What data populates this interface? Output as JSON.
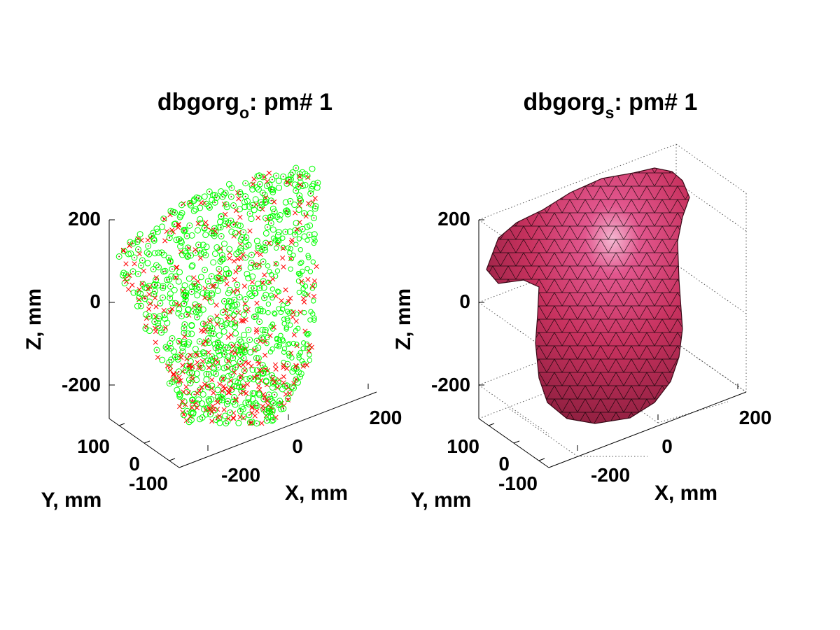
{
  "chart_data": [
    {
      "type": "scatter",
      "title": {
        "main": "dbgorg",
        "subscript": "o",
        "suffix": ": pm# 1"
      },
      "xlabel": "X, mm",
      "ylabel": "Y, mm",
      "zlabel": "Z, mm",
      "x_ticks": [
        "-200",
        "0",
        "200"
      ],
      "y_ticks": [
        "-100",
        "0",
        "100"
      ],
      "z_ticks": [
        "-200",
        "0",
        "200"
      ],
      "xlim": [
        -300,
        300
      ],
      "ylim": [
        -150,
        150
      ],
      "zlim": [
        -280,
        320
      ],
      "grid": false,
      "series": [
        {
          "marker": "circle",
          "color": "#00ff00"
        },
        {
          "marker": "x",
          "color": "#ff0000"
        }
      ]
    },
    {
      "type": "surface",
      "title": {
        "main": "dbgorg",
        "subscript": "s",
        "suffix": ": pm# 1"
      },
      "xlabel": "X, mm",
      "ylabel": "Y, mm",
      "zlabel": "Z, mm",
      "x_ticks": [
        "-200",
        "0",
        "200"
      ],
      "y_ticks": [
        "-100",
        "0",
        "100"
      ],
      "z_ticks": [
        "-200",
        "0",
        "200"
      ],
      "xlim": [
        -300,
        300
      ],
      "ylim": [
        -150,
        150
      ],
      "zlim": [
        -280,
        320
      ],
      "grid": true,
      "surface_color": "#c8325f",
      "mesh_color": "#000000"
    }
  ]
}
